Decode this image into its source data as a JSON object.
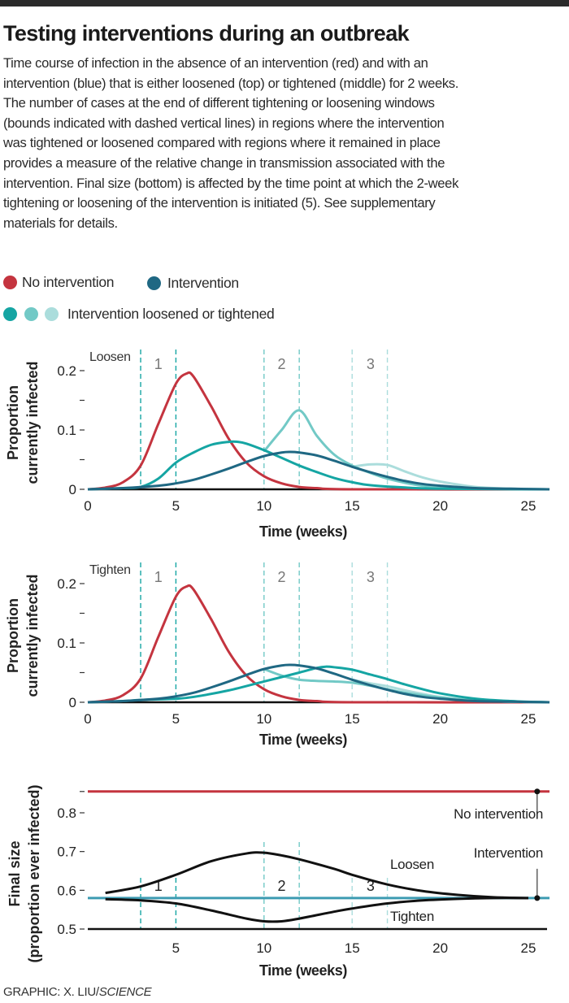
{
  "title": "Testing interventions during an outbreak",
  "description_lines": [
    "Time course of infection in the absence of an intervention (red) and with an",
    "intervention (blue) that is either loosened (top) or tightened (middle) for 2 weeks.",
    "The number of cases at the end of different tightening or loosening windows",
    "(bounds indicated with dashed vertical lines) in regions where the intervention",
    "was tightened or loosened compared with regions where it remained in place",
    "provides a measure of the relative change in transmission associated with the",
    "intervention. Final size (bottom) is affected by the time point at which the 2-week",
    "tightening or loosening of the intervention is initiated (5). See supplementary",
    "materials for details."
  ],
  "legend": {
    "no_intervention": "No intervention",
    "intervention": "Intervention",
    "loosened_tightened": "Intervention loosened or tightened"
  },
  "colors": {
    "no_intervention": "#c4343f",
    "intervention": "#1f6883",
    "window1": "#15a5a3",
    "window2": "#72c9c6",
    "window3": "#abdddc",
    "intervention_final": "#3d9bb2"
  },
  "credit": {
    "prefix": "GRAPHIC: X. LIU/",
    "source": "SCIENCE"
  },
  "chart_data": [
    {
      "type": "line",
      "panel_label": "Loosen",
      "xlabel": "Time (weeks)",
      "ylabel": [
        "Proportion",
        "currently infected"
      ],
      "xlim": [
        0,
        26.2
      ],
      "ylim": [
        0,
        0.2
      ],
      "xticks": [
        0,
        5,
        10,
        15,
        20,
        25
      ],
      "yticks": [
        {
          "v": 0,
          "label": "0"
        },
        {
          "v": 0.05,
          "label": ""
        },
        {
          "v": 0.1,
          "label": "0.1"
        },
        {
          "v": 0.15,
          "label": ""
        },
        {
          "v": 0.2,
          "label": "0.2"
        }
      ],
      "windows": [
        {
          "label": "1",
          "start": 3,
          "end": 5
        },
        {
          "label": "2",
          "start": 10,
          "end": 12
        },
        {
          "label": "3",
          "start": 15,
          "end": 17
        }
      ],
      "series": [
        {
          "name": "No intervention",
          "color_key": "no_intervention",
          "x": [
            0,
            1,
            2,
            3,
            4,
            5,
            5.6,
            6,
            7,
            8,
            9,
            10,
            11,
            12,
            13,
            15,
            26.2
          ],
          "y": [
            0,
            0.003,
            0.012,
            0.04,
            0.11,
            0.178,
            0.195,
            0.19,
            0.14,
            0.085,
            0.045,
            0.022,
            0.01,
            0.004,
            0.002,
            0,
            0
          ]
        },
        {
          "name": "Loosened window 3",
          "color_key": "window3",
          "x": [
            15,
            16,
            17,
            18,
            19,
            20,
            21,
            22,
            24,
            26.2
          ],
          "y": [
            0.038,
            0.042,
            0.041,
            0.03,
            0.02,
            0.013,
            0.008,
            0.004,
            0.001,
            0
          ]
        },
        {
          "name": "Loosened window 2",
          "color_key": "window2",
          "x": [
            10,
            11,
            12,
            13,
            14,
            15,
            16,
            17,
            18,
            19,
            20,
            22,
            26.2
          ],
          "y": [
            0.064,
            0.1,
            0.133,
            0.09,
            0.058,
            0.04,
            0.028,
            0.018,
            0.011,
            0.006,
            0.003,
            0.001,
            0
          ]
        },
        {
          "name": "Loosened window 1",
          "color_key": "window1",
          "x": [
            0,
            2,
            3,
            4,
            5,
            6,
            7,
            8,
            8.5,
            9,
            10,
            11,
            12,
            13,
            14,
            15,
            16,
            18,
            20,
            26.2
          ],
          "y": [
            0,
            0.002,
            0.004,
            0.018,
            0.045,
            0.062,
            0.075,
            0.08,
            0.08,
            0.077,
            0.066,
            0.053,
            0.04,
            0.029,
            0.019,
            0.012,
            0.007,
            0.003,
            0.001,
            0
          ]
        },
        {
          "name": "Intervention",
          "color_key": "intervention",
          "x": [
            0,
            2,
            4,
            5,
            6,
            7,
            8,
            9,
            10,
            11,
            11.5,
            12,
            13,
            14,
            15,
            16,
            17,
            18,
            19,
            20,
            22,
            24,
            26.2
          ],
          "y": [
            0,
            0.002,
            0.006,
            0.01,
            0.016,
            0.025,
            0.035,
            0.046,
            0.056,
            0.062,
            0.063,
            0.062,
            0.057,
            0.048,
            0.038,
            0.029,
            0.021,
            0.014,
            0.009,
            0.006,
            0.002,
            0.001,
            0
          ]
        }
      ]
    },
    {
      "type": "line",
      "panel_label": "Tighten",
      "xlabel": "Time (weeks)",
      "ylabel": [
        "Proportion",
        "currently infected"
      ],
      "xlim": [
        0,
        26.2
      ],
      "ylim": [
        0,
        0.2
      ],
      "xticks": [
        0,
        5,
        10,
        15,
        20,
        25
      ],
      "yticks": [
        {
          "v": 0,
          "label": "0"
        },
        {
          "v": 0.05,
          "label": ""
        },
        {
          "v": 0.1,
          "label": "0.1"
        },
        {
          "v": 0.15,
          "label": ""
        },
        {
          "v": 0.2,
          "label": "0.2"
        }
      ],
      "windows": [
        {
          "label": "1",
          "start": 3,
          "end": 5
        },
        {
          "label": "2",
          "start": 10,
          "end": 12
        },
        {
          "label": "3",
          "start": 15,
          "end": 17
        }
      ],
      "series": [
        {
          "name": "No intervention",
          "color_key": "no_intervention",
          "x": [
            0,
            1,
            2,
            3,
            4,
            5,
            5.6,
            6,
            7,
            8,
            9,
            10,
            11,
            12,
            13,
            15,
            26.2
          ],
          "y": [
            0,
            0.003,
            0.012,
            0.04,
            0.11,
            0.178,
            0.195,
            0.19,
            0.14,
            0.085,
            0.045,
            0.022,
            0.01,
            0.004,
            0.002,
            0,
            0
          ]
        },
        {
          "name": "Tightened window 3",
          "color_key": "window3",
          "x": [
            15,
            16,
            17,
            18,
            19,
            20,
            22,
            24,
            26.2
          ],
          "y": [
            0.038,
            0.032,
            0.027,
            0.02,
            0.014,
            0.009,
            0.003,
            0.001,
            0
          ]
        },
        {
          "name": "Tightened window 2",
          "color_key": "window2",
          "x": [
            10,
            11,
            12,
            13,
            14,
            15,
            16,
            17,
            18,
            20,
            22,
            24,
            26.2
          ],
          "y": [
            0.056,
            0.045,
            0.038,
            0.036,
            0.035,
            0.033,
            0.028,
            0.022,
            0.016,
            0.008,
            0.003,
            0.001,
            0
          ]
        },
        {
          "name": "Tightened window 1",
          "color_key": "window1",
          "x": [
            0,
            2,
            3,
            5,
            6,
            8,
            10,
            12,
            13,
            13.5,
            14,
            15,
            16,
            17,
            18,
            19,
            20,
            22,
            24,
            26.2
          ],
          "y": [
            0,
            0.002,
            0.004,
            0.006,
            0.009,
            0.02,
            0.035,
            0.05,
            0.058,
            0.06,
            0.059,
            0.055,
            0.047,
            0.039,
            0.03,
            0.022,
            0.015,
            0.006,
            0.002,
            0
          ]
        },
        {
          "name": "Intervention",
          "color_key": "intervention",
          "x": [
            0,
            2,
            4,
            5,
            6,
            7,
            8,
            9,
            10,
            11,
            11.5,
            12,
            13,
            14,
            15,
            16,
            17,
            18,
            19,
            20,
            22,
            24,
            26.2
          ],
          "y": [
            0,
            0.002,
            0.006,
            0.01,
            0.016,
            0.025,
            0.035,
            0.046,
            0.056,
            0.062,
            0.063,
            0.062,
            0.057,
            0.048,
            0.038,
            0.029,
            0.021,
            0.014,
            0.009,
            0.006,
            0.002,
            0.001,
            0
          ]
        }
      ]
    },
    {
      "type": "line",
      "xlabel": "Time (weeks)",
      "ylabel": [
        "Final size",
        "(proportion ever infected)"
      ],
      "xlim": [
        0,
        26.2
      ],
      "ylim": [
        0.5,
        0.86
      ],
      "xticks": [
        5,
        10,
        15,
        20,
        25
      ],
      "yticks": [
        {
          "v": 0.5,
          "label": "0.5"
        },
        {
          "v": 0.6,
          "label": "0.6"
        },
        {
          "v": 0.7,
          "label": "0.7"
        },
        {
          "v": 0.8,
          "label": "0.8"
        },
        {
          "v": 0.855,
          "label": ""
        }
      ],
      "windows": [
        {
          "label": "1",
          "start": 3,
          "end": 5
        },
        {
          "label": "2",
          "start": 10,
          "end": 12
        },
        {
          "label": "3",
          "start": 15,
          "end": 17
        }
      ],
      "annotations": {
        "no_intervention": "No intervention",
        "intervention": "Intervention",
        "loosen": "Loosen",
        "tighten": "Tighten"
      },
      "series": [
        {
          "name": "No intervention",
          "color_key": "no_intervention",
          "x": [
            0,
            26.2
          ],
          "y": [
            0.855,
            0.855
          ]
        },
        {
          "name": "Intervention",
          "color_key": "intervention_final",
          "x": [
            0,
            26.2
          ],
          "y": [
            0.58,
            0.58
          ]
        },
        {
          "name": "Loosen",
          "color_key": "black",
          "x": [
            1,
            3,
            5,
            7,
            9,
            10,
            11,
            12,
            14,
            15,
            17,
            19,
            21,
            23,
            25
          ],
          "y": [
            0.593,
            0.61,
            0.64,
            0.675,
            0.695,
            0.697,
            0.69,
            0.68,
            0.655,
            0.64,
            0.615,
            0.598,
            0.588,
            0.582,
            0.58
          ]
        },
        {
          "name": "Tighten",
          "color_key": "black",
          "x": [
            1,
            3,
            5,
            7,
            9,
            10,
            11,
            12,
            14,
            15,
            17,
            19,
            21,
            23,
            25
          ],
          "y": [
            0.577,
            0.574,
            0.566,
            0.548,
            0.527,
            0.52,
            0.52,
            0.527,
            0.545,
            0.553,
            0.566,
            0.574,
            0.578,
            0.58,
            0.58
          ]
        }
      ]
    }
  ]
}
